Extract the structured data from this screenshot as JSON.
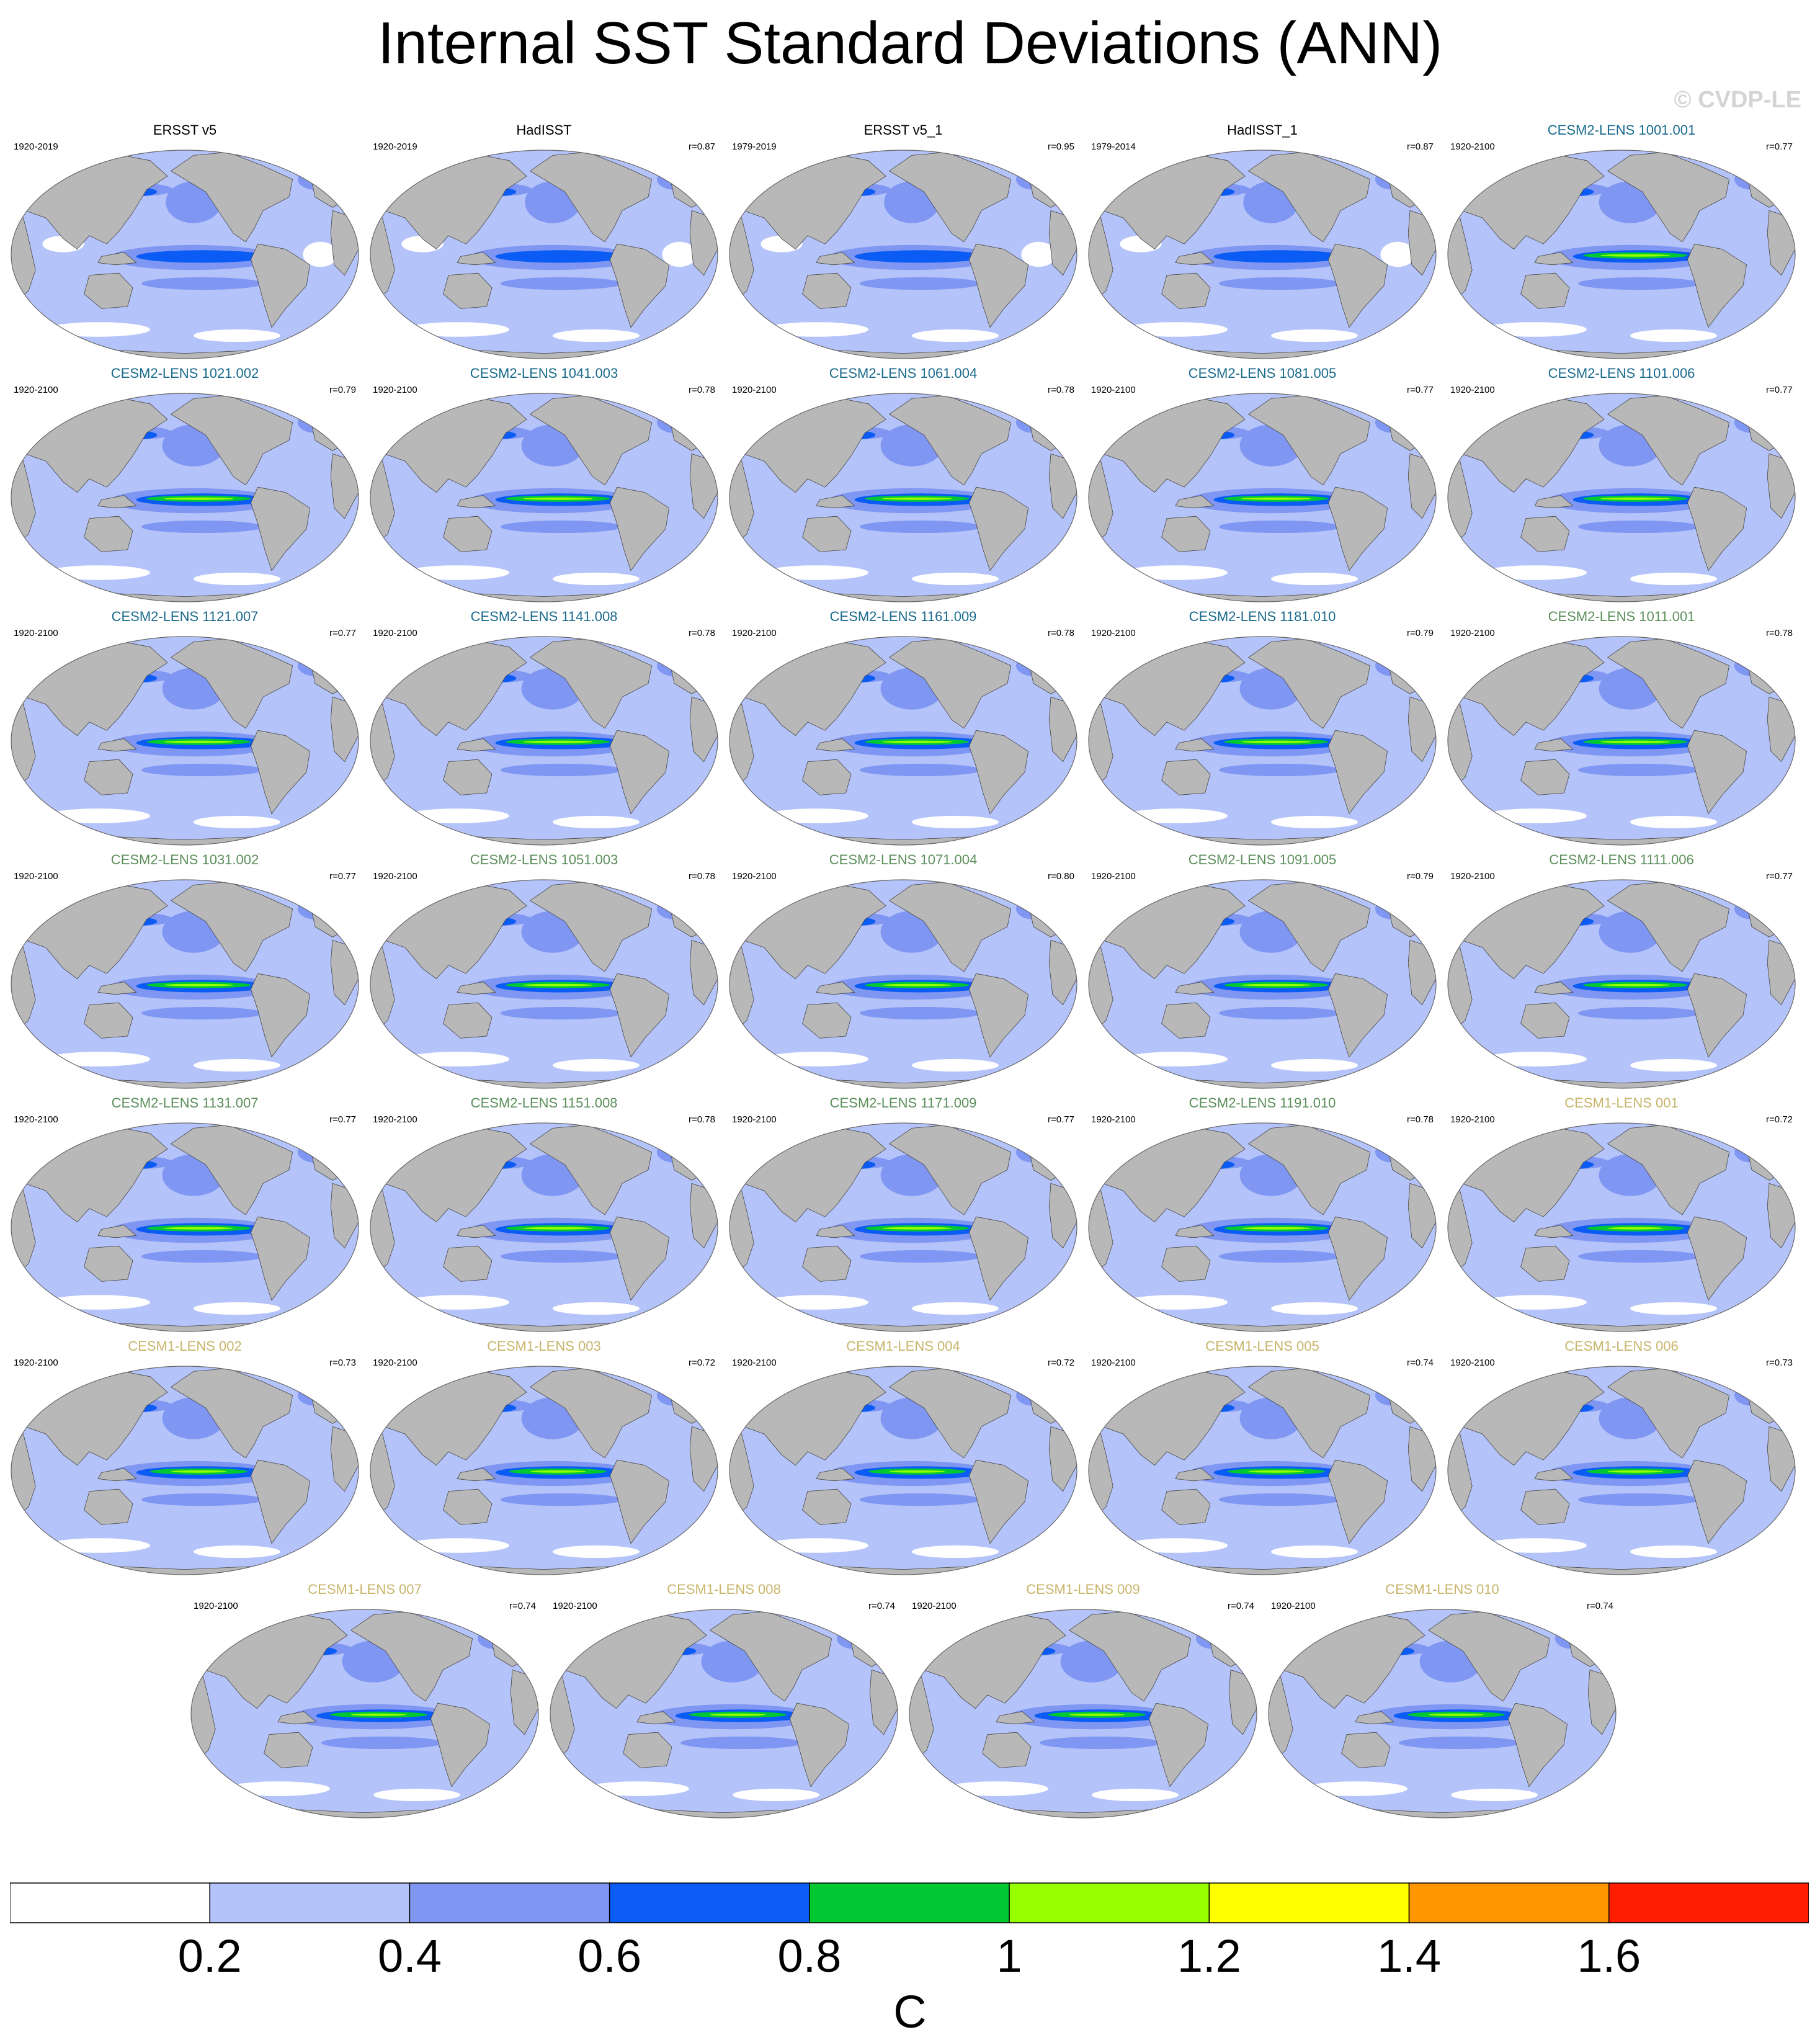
{
  "title": "Internal SST Standard Deviations (ANN)",
  "watermark": "© CVDP-LE",
  "colors": {
    "obs_title": "#000000",
    "cesm2_a": "#1a6a8c",
    "cesm2_b": "#5b8f5b",
    "cesm1": "#c8b46a",
    "land": "#b8b8b8",
    "coast": "#444444"
  },
  "panels": [
    {
      "title": "ERSST v5",
      "years": "1920-2019",
      "r": "",
      "group": "obs"
    },
    {
      "title": "HadISST",
      "years": "1920-2019",
      "r": "r=0.87",
      "group": "obs"
    },
    {
      "title": "ERSST v5_1",
      "years": "1979-2019",
      "r": "r=0.95",
      "group": "obs"
    },
    {
      "title": "HadISST_1",
      "years": "1979-2014",
      "r": "r=0.87",
      "group": "obs"
    },
    {
      "title": "CESM2-LENS 1001.001",
      "years": "1920-2100",
      "r": "r=0.77",
      "group": "cesm2_a"
    },
    {
      "title": "CESM2-LENS 1021.002",
      "years": "1920-2100",
      "r": "r=0.79",
      "group": "cesm2_a"
    },
    {
      "title": "CESM2-LENS 1041.003",
      "years": "1920-2100",
      "r": "r=0.78",
      "group": "cesm2_a"
    },
    {
      "title": "CESM2-LENS 1061.004",
      "years": "1920-2100",
      "r": "r=0.78",
      "group": "cesm2_a"
    },
    {
      "title": "CESM2-LENS 1081.005",
      "years": "1920-2100",
      "r": "r=0.77",
      "group": "cesm2_a"
    },
    {
      "title": "CESM2-LENS 1101.006",
      "years": "1920-2100",
      "r": "r=0.77",
      "group": "cesm2_a"
    },
    {
      "title": "CESM2-LENS 1121.007",
      "years": "1920-2100",
      "r": "r=0.77",
      "group": "cesm2_a"
    },
    {
      "title": "CESM2-LENS 1141.008",
      "years": "1920-2100",
      "r": "r=0.78",
      "group": "cesm2_a"
    },
    {
      "title": "CESM2-LENS 1161.009",
      "years": "1920-2100",
      "r": "r=0.78",
      "group": "cesm2_a"
    },
    {
      "title": "CESM2-LENS 1181.010",
      "years": "1920-2100",
      "r": "r=0.79",
      "group": "cesm2_a"
    },
    {
      "title": "CESM2-LENS 1011.001",
      "years": "1920-2100",
      "r": "r=0.78",
      "group": "cesm2_b"
    },
    {
      "title": "CESM2-LENS 1031.002",
      "years": "1920-2100",
      "r": "r=0.77",
      "group": "cesm2_b"
    },
    {
      "title": "CESM2-LENS 1051.003",
      "years": "1920-2100",
      "r": "r=0.78",
      "group": "cesm2_b"
    },
    {
      "title": "CESM2-LENS 1071.004",
      "years": "1920-2100",
      "r": "r=0.80",
      "group": "cesm2_b"
    },
    {
      "title": "CESM2-LENS 1091.005",
      "years": "1920-2100",
      "r": "r=0.79",
      "group": "cesm2_b"
    },
    {
      "title": "CESM2-LENS 1111.006",
      "years": "1920-2100",
      "r": "r=0.77",
      "group": "cesm2_b"
    },
    {
      "title": "CESM2-LENS 1131.007",
      "years": "1920-2100",
      "r": "r=0.77",
      "group": "cesm2_b"
    },
    {
      "title": "CESM2-LENS 1151.008",
      "years": "1920-2100",
      "r": "r=0.78",
      "group": "cesm2_b"
    },
    {
      "title": "CESM2-LENS 1171.009",
      "years": "1920-2100",
      "r": "r=0.77",
      "group": "cesm2_b"
    },
    {
      "title": "CESM2-LENS 1191.010",
      "years": "1920-2100",
      "r": "r=0.78",
      "group": "cesm2_b"
    },
    {
      "title": "CESM1-LENS 001",
      "years": "1920-2100",
      "r": "r=0.72",
      "group": "cesm1"
    },
    {
      "title": "CESM1-LENS 002",
      "years": "1920-2100",
      "r": "r=0.73",
      "group": "cesm1"
    },
    {
      "title": "CESM1-LENS 003",
      "years": "1920-2100",
      "r": "r=0.72",
      "group": "cesm1"
    },
    {
      "title": "CESM1-LENS 004",
      "years": "1920-2100",
      "r": "r=0.72",
      "group": "cesm1"
    },
    {
      "title": "CESM1-LENS 005",
      "years": "1920-2100",
      "r": "r=0.74",
      "group": "cesm1"
    },
    {
      "title": "CESM1-LENS 006",
      "years": "1920-2100",
      "r": "r=0.73",
      "group": "cesm1"
    },
    {
      "title": "CESM1-LENS 007",
      "years": "1920-2100",
      "r": "r=0.74",
      "group": "cesm1"
    },
    {
      "title": "CESM1-LENS 008",
      "years": "1920-2100",
      "r": "r=0.74",
      "group": "cesm1"
    },
    {
      "title": "CESM1-LENS 009",
      "years": "1920-2100",
      "r": "r=0.74",
      "group": "cesm1"
    },
    {
      "title": "CESM1-LENS 010",
      "years": "1920-2100",
      "r": "r=0.74",
      "group": "cesm1"
    }
  ],
  "colorbar": {
    "colors": [
      "#ffffff",
      "#b4c3f9",
      "#7f96f2",
      "#0a5cf5",
      "#00c832",
      "#96ff00",
      "#ffff00",
      "#ff9600",
      "#ff1e00"
    ],
    "tick_labels": [
      "0.2",
      "0.4",
      "0.6",
      "0.8",
      "1",
      "1.2",
      "1.4",
      "1.6"
    ],
    "unit": "C"
  }
}
